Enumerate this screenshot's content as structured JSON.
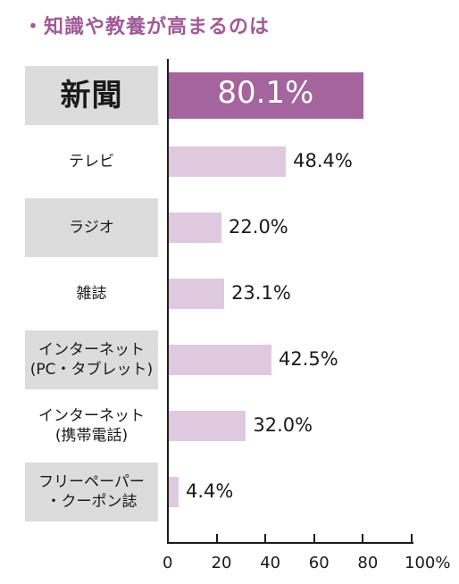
{
  "chart_data": {
    "type": "bar",
    "orientation": "horizontal",
    "title": "・知識や教養が高まるのは",
    "categories": [
      "新聞",
      "テレビ",
      "ラジオ",
      "雑誌",
      "インターネット\n(PC・タブレット)",
      "インターネット\n(携帯電話)",
      "フリーペーパー\n・クーポン誌"
    ],
    "values": [
      80.1,
      48.4,
      22.0,
      23.1,
      42.5,
      32.0,
      4.4
    ],
    "value_labels": [
      "80.1%",
      "48.4%",
      "22.0%",
      "23.1%",
      "42.5%",
      "32.0%",
      "4.4%"
    ],
    "xlim": [
      0,
      100
    ],
    "xticks": [
      0,
      20,
      40,
      60,
      80,
      100
    ],
    "xtick_labels": [
      "0",
      "20",
      "40",
      "60",
      "80",
      "100%"
    ],
    "highlight_index": 0,
    "grid": false,
    "colors": {
      "highlight": "#a4649d",
      "bar": "#dfc9df",
      "title": "#a05a96",
      "label_bg": "#dcdcdc"
    }
  }
}
